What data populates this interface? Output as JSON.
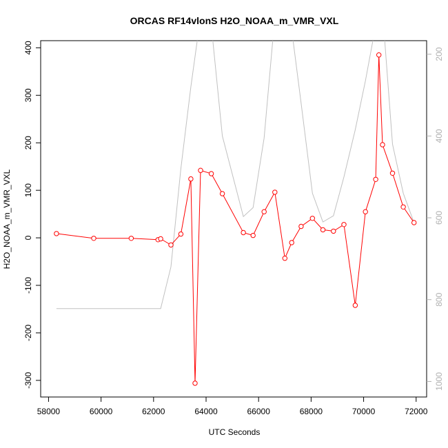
{
  "chart_data": {
    "type": "line",
    "title": "ORCAS RF14vlonS H2O_NOAA_m_VMR_VXL",
    "xlabel": "UTC Seconds",
    "ylabel": "H2O_NOAA_m_VMR_VXL",
    "xlim": [
      57700,
      72400
    ],
    "ylim": [
      -335,
      415
    ],
    "y2lim": [
      1038,
      167
    ],
    "x_ticks": [
      58000,
      60000,
      62000,
      64000,
      66000,
      68000,
      70000,
      72000
    ],
    "y_ticks": [
      -300,
      -200,
      -100,
      0,
      100,
      200,
      300,
      400
    ],
    "y2_ticks": [
      200,
      400,
      600,
      800,
      1000
    ],
    "grid": false,
    "series": [
      {
        "color": "#ff0000",
        "marker": "open-circle",
        "axis": "left",
        "x": [
          58300,
          59720,
          61150,
          62170,
          62270,
          62660,
          63040,
          63420,
          63580,
          63790,
          64200,
          64620,
          65420,
          65790,
          66210,
          66620,
          67000,
          67260,
          67620,
          68050,
          68450,
          68850,
          69250,
          69680,
          70070,
          70460,
          70580,
          70720,
          71100,
          71510,
          71920
        ],
        "y": [
          9,
          -1,
          -1,
          -4,
          -2,
          -15,
          8,
          124,
          -306,
          142,
          135,
          93,
          11,
          5,
          55,
          96,
          -43,
          -10,
          24,
          41,
          17,
          14,
          28,
          -142,
          55,
          123,
          385,
          196,
          136,
          65,
          32
        ]
      },
      {
        "color": "#c0c0c0",
        "marker": "none",
        "axis": "right",
        "x": [
          58300,
          62270,
          62660,
          63040,
          63420,
          63790,
          64200,
          64620,
          65420,
          65790,
          66210,
          66620,
          67000,
          67260,
          67620,
          68050,
          68450,
          68850,
          69250,
          69680,
          70070,
          70460,
          70580,
          70720,
          71100,
          71510,
          71920
        ],
        "y": [
          822,
          822,
          720,
          480,
          280,
          108,
          130,
          400,
          597,
          575,
          405,
          108,
          120,
          140,
          320,
          540,
          610,
          595,
          500,
          385,
          265,
          130,
          110,
          95,
          420,
          540,
          612
        ]
      }
    ]
  }
}
